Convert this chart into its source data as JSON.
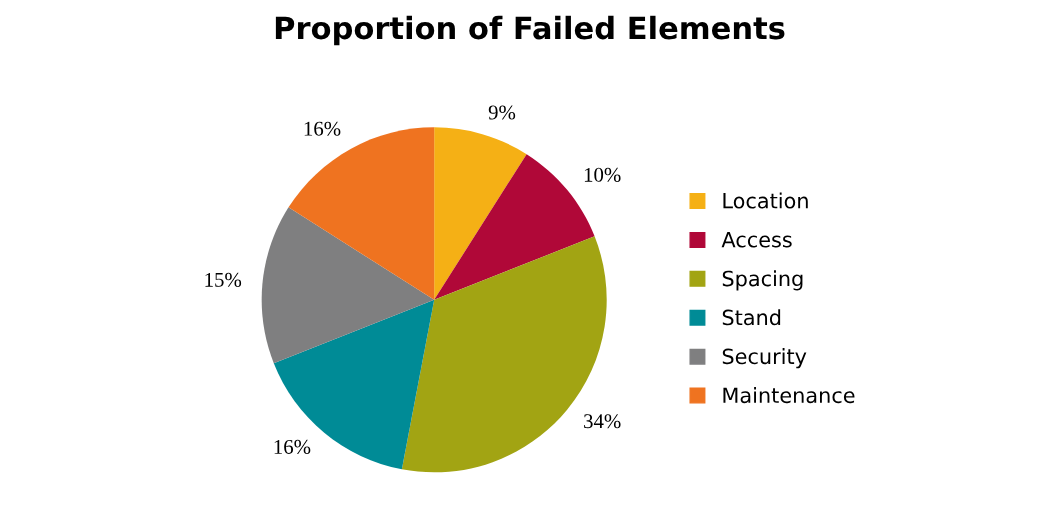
{
  "chart_data": {
    "type": "pie",
    "title": "Proportion of Failed Elements",
    "categories": [
      "Location",
      "Access",
      "Spacing",
      "Stand",
      "Security",
      "Maintenance"
    ],
    "values": [
      9,
      10,
      34,
      16,
      15,
      16
    ],
    "value_labels": [
      "9%",
      "10%",
      "34%",
      "16%",
      "15%",
      "16%"
    ],
    "colors": [
      "#f5b015",
      "#b00838",
      "#a2a413",
      "#008b96",
      "#7f7f80",
      "#ef7320"
    ],
    "legend": "right"
  }
}
